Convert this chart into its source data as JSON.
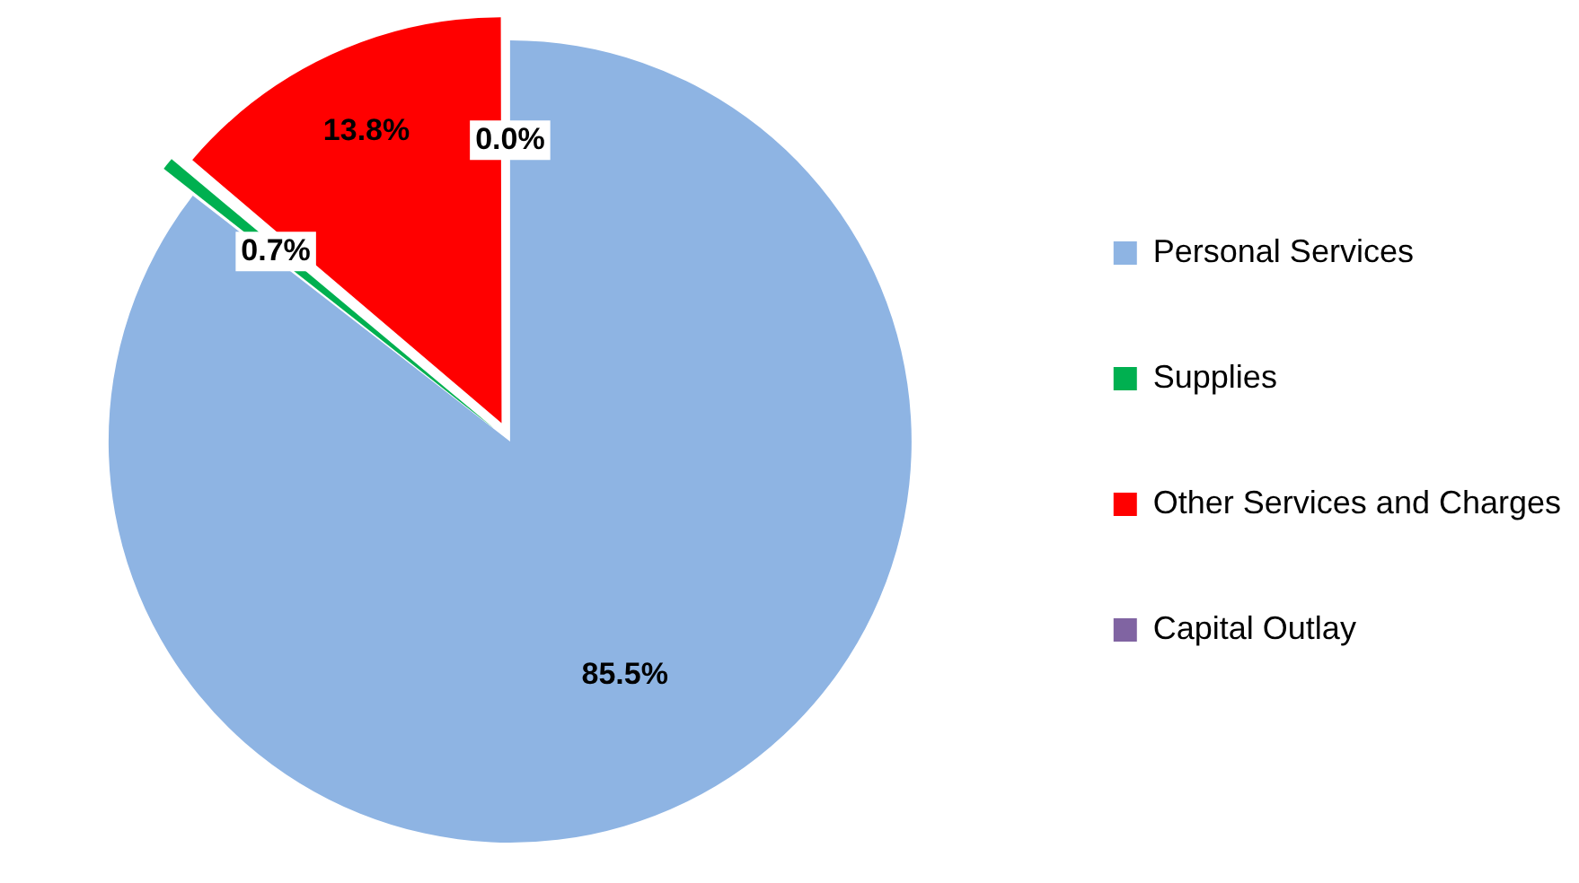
{
  "chart_data": {
    "type": "pie",
    "categories": [
      "Personal Services",
      "Supplies",
      "Other Services and Charges",
      "Capital Outlay"
    ],
    "values": [
      85.5,
      0.7,
      13.8,
      0.0
    ],
    "colors": [
      "#8eb4e3",
      "#00b050",
      "#ff0000",
      "#8064a2"
    ],
    "value_labels": [
      "85.5%",
      "0.7%",
      "13.8%",
      "0.0%"
    ],
    "legend": "right"
  }
}
